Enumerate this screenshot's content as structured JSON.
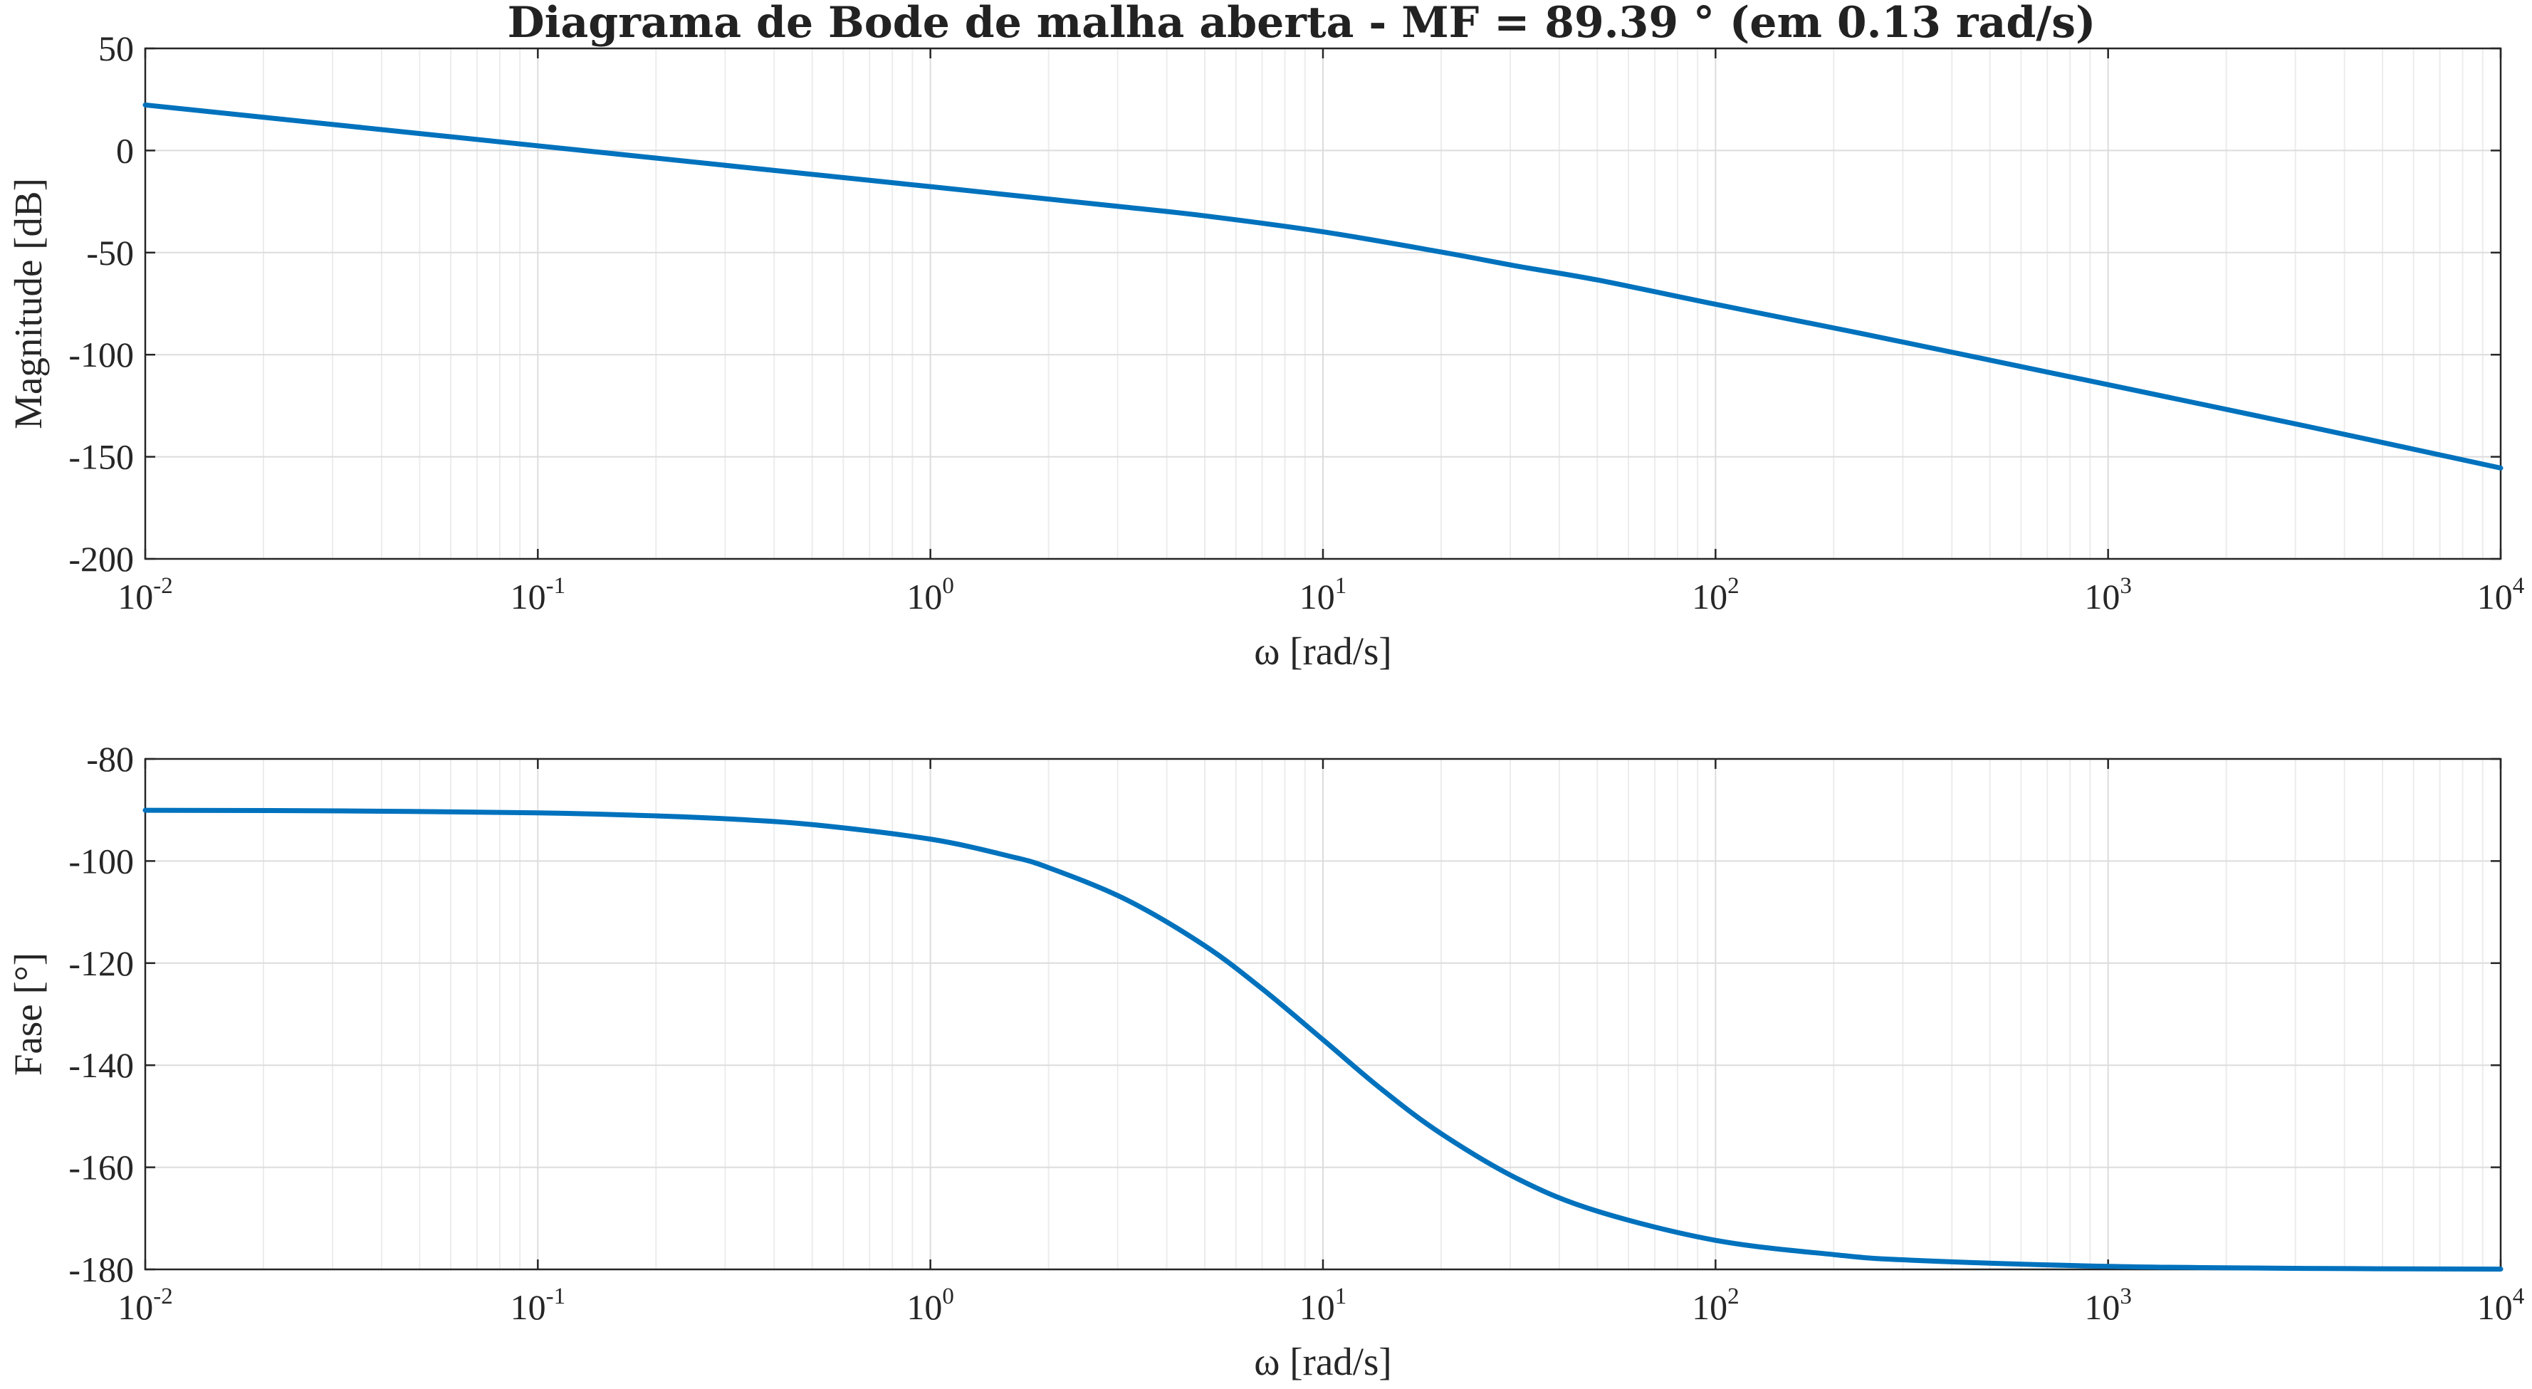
{
  "title": "Diagrama de Bode de malha aberta - MF = 89.39 ° (em 0.13 rad/s)",
  "colors": {
    "line": "#0072bd",
    "axes": "#262626",
    "grid": "#dcdcdc",
    "background": "#ffffff"
  },
  "chart_data": [
    {
      "type": "line",
      "xscale": "log",
      "grid": true,
      "xlim": [
        0.01,
        10000
      ],
      "ylim": [
        -200,
        50
      ],
      "xlabel": "ω [rad/s]",
      "ylabel": "Magnitude [dB]",
      "xticks": [
        {
          "base": "10",
          "exp": "-2",
          "value": 0.01
        },
        {
          "base": "10",
          "exp": "-1",
          "value": 0.1
        },
        {
          "base": "10",
          "exp": "0",
          "value": 1
        },
        {
          "base": "10",
          "exp": "1",
          "value": 10
        },
        {
          "base": "10",
          "exp": "2",
          "value": 100
        },
        {
          "base": "10",
          "exp": "3",
          "value": 1000
        },
        {
          "base": "10",
          "exp": "4",
          "value": 10000
        }
      ],
      "yticks": [
        "50",
        "0",
        "-50",
        "-100",
        "-150",
        "-200"
      ],
      "series": [
        {
          "x": [
            0.01,
            0.0316,
            0.1,
            0.316,
            1,
            2,
            3.16,
            5,
            10,
            20,
            31.6,
            50,
            100,
            200,
            316,
            1000,
            3160,
            10000
          ],
          "y": [
            22.3,
            12.3,
            2.3,
            -7.7,
            -17.7,
            -23.8,
            -27.8,
            -32.0,
            -39.8,
            -49.7,
            -56.8,
            -63.4,
            -75.3,
            -86.9,
            -94.7,
            -114.7,
            -134.8,
            -155.5
          ]
        }
      ]
    },
    {
      "type": "line",
      "xscale": "log",
      "grid": true,
      "xlim": [
        0.01,
        10000
      ],
      "ylim": [
        -180,
        -80
      ],
      "xlabel": "ω [rad/s]",
      "ylabel": "Fase [°]",
      "xticks": [
        {
          "base": "10",
          "exp": "-2",
          "value": 0.01
        },
        {
          "base": "10",
          "exp": "-1",
          "value": 0.1
        },
        {
          "base": "10",
          "exp": "0",
          "value": 1
        },
        {
          "base": "10",
          "exp": "1",
          "value": 10
        },
        {
          "base": "10",
          "exp": "2",
          "value": 100
        },
        {
          "base": "10",
          "exp": "3",
          "value": 1000
        },
        {
          "base": "10",
          "exp": "4",
          "value": 10000
        }
      ],
      "yticks": [
        "-80",
        "-100",
        "-120",
        "-140",
        "-160",
        "-180"
      ],
      "series": [
        {
          "x": [
            0.01,
            0.0316,
            0.1,
            0.2,
            0.316,
            0.5,
            1,
            1.58,
            2,
            3.16,
            5,
            7.07,
            10,
            14.1,
            20,
            31.6,
            50,
            100,
            200,
            316,
            1000,
            3160,
            10000
          ],
          "y": [
            -90.06,
            -90.18,
            -90.57,
            -91.15,
            -91.81,
            -92.86,
            -95.71,
            -99.0,
            -101.3,
            -107.6,
            -116.6,
            -125.3,
            -135.0,
            -144.7,
            -153.4,
            -162.4,
            -168.6,
            -174.3,
            -177.1,
            -178.2,
            -179.4,
            -179.8,
            -179.94
          ]
        }
      ]
    }
  ]
}
